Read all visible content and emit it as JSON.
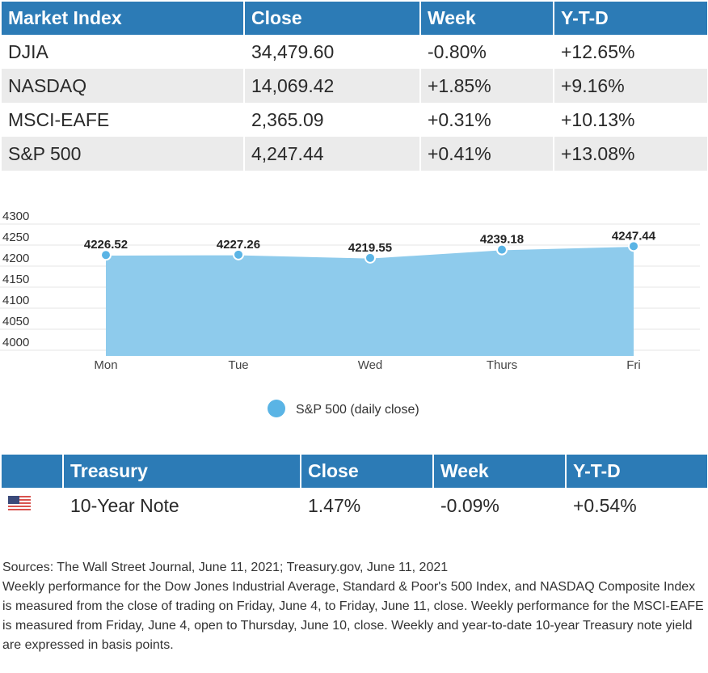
{
  "market_table": {
    "headers": [
      "Market Index",
      "Close",
      "Week",
      "Y-T-D"
    ],
    "rows": [
      [
        "DJIA",
        "34,479.60",
        "-0.80%",
        "+12.65%"
      ],
      [
        "NASDAQ",
        "14,069.42",
        "+1.85%",
        "+9.16%"
      ],
      [
        "MSCI-EAFE",
        "2,365.09",
        "+0.31%",
        "+10.13%"
      ],
      [
        "S&P 500",
        "4,247.44",
        "+0.41%",
        "+13.08%"
      ]
    ]
  },
  "chart_data": {
    "type": "area",
    "categories": [
      "Mon",
      "Tue",
      "Wed",
      "Thurs",
      "Fri"
    ],
    "series": [
      {
        "name": "S&P 500 (daily close)",
        "values": [
          4226.52,
          4227.26,
          4219.55,
          4239.18,
          4247.44
        ]
      }
    ],
    "data_labels": [
      "4226.52",
      "4227.26",
      "4219.55",
      "4239.18",
      "4247.44"
    ],
    "yticks": [
      "4300",
      "4250",
      "4200",
      "4150",
      "4100",
      "4050",
      "4000"
    ],
    "ylim": [
      4000,
      4300
    ],
    "grid": true,
    "legend": "bottom-center",
    "color": "#8ecbec",
    "point_color": "#5ab4e5"
  },
  "treasury_table": {
    "headers": [
      "",
      "Treasury",
      "Close",
      "Week",
      "Y-T-D"
    ],
    "rows": [
      [
        "10-Year Note",
        "1.47%",
        "-0.09%",
        "+0.54%"
      ]
    ],
    "flag_icon": "us-flag-icon"
  },
  "notes": {
    "sources": "Sources: The Wall Street Journal, June 11, 2021; Treasury.gov, June 11, 2021",
    "body": "Weekly performance for the Dow Jones Industrial Average, Standard & Poor's 500 Index, and NASDAQ Composite Index is measured from the close of trading on Friday, June 4, to Friday, June 11, close. Weekly performance for the MSCI-EAFE is measured from Friday, June 4, open to Thursday, June 10, close. Weekly and year-to-date 10-year Treasury note yield are expressed in basis points."
  }
}
